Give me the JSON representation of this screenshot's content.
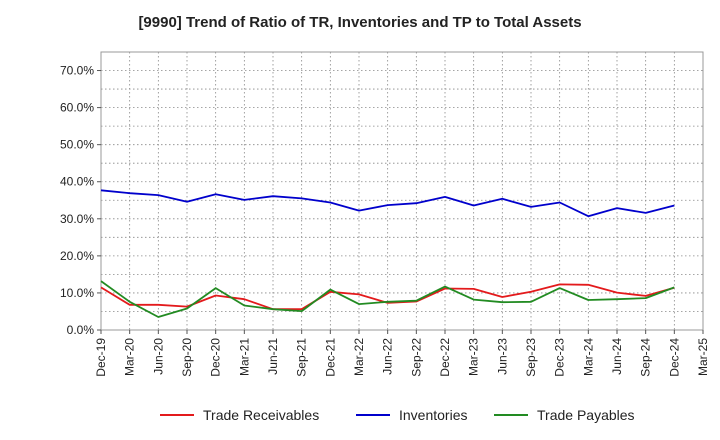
{
  "chart_data": {
    "type": "line",
    "title": "[9990]  Trend of Ratio of TR, Inventories and TP to Total Assets",
    "xlabel": "",
    "ylabel": "",
    "ylim": [
      0,
      75
    ],
    "y_ticks": [
      "0.0%",
      "10.0%",
      "20.0%",
      "30.0%",
      "40.0%",
      "50.0%",
      "60.0%",
      "70.0%"
    ],
    "x_tick_labels": [
      "Dec-19",
      "Mar-20",
      "Jun-20",
      "Sep-20",
      "Dec-20",
      "Mar-21",
      "Jun-21",
      "Sep-21",
      "Dec-21",
      "Mar-22",
      "Jun-22",
      "Sep-22",
      "Dec-22",
      "Mar-23",
      "Jun-23",
      "Sep-23",
      "Dec-23",
      "Mar-24",
      "Jun-24",
      "Sep-24",
      "Dec-24",
      "Mar-25"
    ],
    "x": [
      "Dec-19",
      "Mar-20",
      "Jun-20",
      "Sep-20",
      "Dec-20",
      "Mar-21",
      "Jun-21",
      "Sep-21",
      "Dec-21",
      "Mar-22",
      "Jun-22",
      "Sep-22",
      "Dec-22",
      "Mar-23",
      "Jun-23",
      "Sep-23",
      "Dec-23",
      "Mar-24",
      "Jun-24",
      "Sep-24",
      "Dec-24"
    ],
    "grid": true,
    "legend_position": "bottom",
    "series": [
      {
        "name": "Trade Receivables",
        "color": "#e31a1c",
        "values": [
          11.5,
          6.8,
          6.8,
          6.3,
          9.3,
          8.3,
          5.6,
          5.6,
          10.3,
          9.6,
          7.3,
          7.7,
          11.2,
          11.1,
          8.9,
          10.3,
          12.3,
          12.2,
          10.1,
          9.2,
          11.4
        ]
      },
      {
        "name": "Inventories",
        "color": "#0000cc",
        "values": [
          37.7,
          36.9,
          36.4,
          34.6,
          36.6,
          35.1,
          36.1,
          35.5,
          34.4,
          32.2,
          33.7,
          34.2,
          35.9,
          33.6,
          35.4,
          33.2,
          34.4,
          30.7,
          32.9,
          31.6,
          33.6
        ]
      },
      {
        "name": "Trade Payables",
        "color": "#228b22",
        "values": [
          13.2,
          7.6,
          3.5,
          5.8,
          11.3,
          6.6,
          5.6,
          5.1,
          10.9,
          7.0,
          7.6,
          7.9,
          11.7,
          8.2,
          7.5,
          7.6,
          11.3,
          8.1,
          8.3,
          8.6,
          11.5
        ]
      }
    ]
  }
}
